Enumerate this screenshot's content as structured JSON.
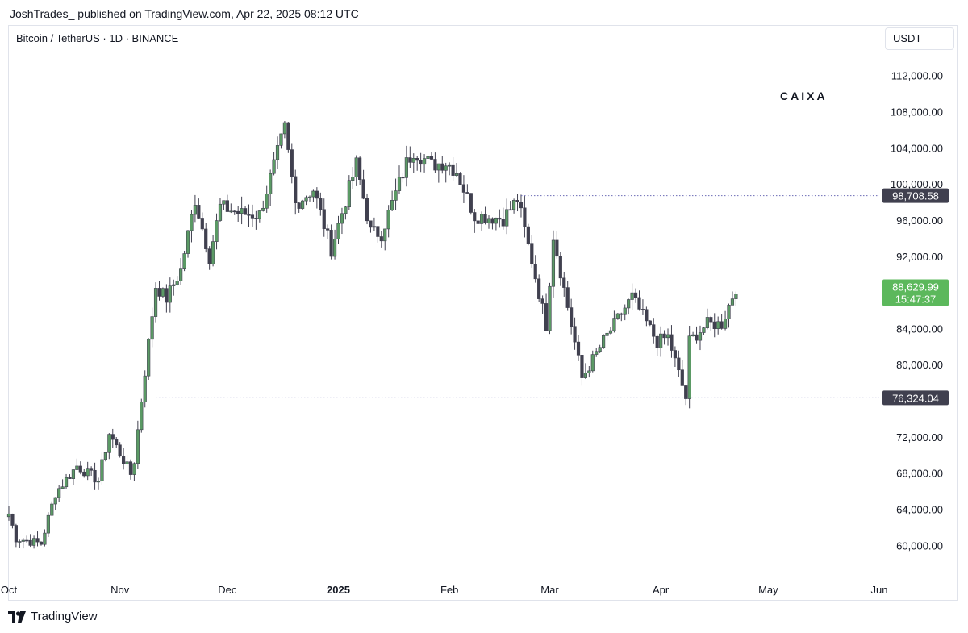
{
  "header": {
    "publisher_line": "JoshTrades_ published on TradingView.com, Apr 22, 2025 08:12 UTC"
  },
  "symbol_line": "Bitcoin / TetherUS · 1D · BINANCE",
  "currency_button": "USDT",
  "watermark": "CAIXA",
  "footer": {
    "logo_text": "TradingView"
  },
  "colors": {
    "up": "#5b9a65",
    "down": "#40404f",
    "last_price_bg": "#5cb85c",
    "level_label_bg": "#40404f",
    "dotted": "#6b6bb5"
  },
  "chart_data": {
    "type": "candlestick",
    "symbol": "BTCUSDT",
    "interval": "1D",
    "ylim": [
      57000,
      115000
    ],
    "y_ticks": [
      "112,000.00",
      "108,000.00",
      "104,000.00",
      "100,000.00",
      "96,000.00",
      "92,000.00",
      "84,000.00",
      "80,000.00",
      "72,000.00",
      "68,000.00",
      "64,000.00",
      "60,000.00"
    ],
    "y_tick_values": [
      112000,
      108000,
      104000,
      100000,
      96000,
      92000,
      84000,
      80000,
      72000,
      68000,
      64000,
      60000
    ],
    "x_labels": [
      {
        "text": "Oct",
        "date": "2024-10-01",
        "bold": false
      },
      {
        "text": "Nov",
        "date": "2024-11-01",
        "bold": false
      },
      {
        "text": "Dec",
        "date": "2024-12-01",
        "bold": false
      },
      {
        "text": "2025",
        "date": "2025-01-01",
        "bold": true
      },
      {
        "text": "Feb",
        "date": "2025-02-01",
        "bold": false
      },
      {
        "text": "Mar",
        "date": "2025-03-01",
        "bold": false
      },
      {
        "text": "Apr",
        "date": "2025-04-01",
        "bold": false
      },
      {
        "text": "May",
        "date": "2025-05-01",
        "bold": false
      },
      {
        "text": "Jun",
        "date": "2025-06-01",
        "bold": false
      }
    ],
    "date_range": [
      "2024-10-01",
      "2025-06-01"
    ],
    "levels": [
      {
        "price": 98708.58,
        "label": "98,708.58",
        "from_date": "2025-02-21"
      },
      {
        "price": 76324.04,
        "label": "76,324.04",
        "from_date": "2024-11-11"
      }
    ],
    "last_price": {
      "price": 88629.99,
      "label": "88,629.99",
      "countdown": "15:47:37"
    },
    "anchors": [
      {
        "date": "2024-10-01",
        "price": 63500
      },
      {
        "date": "2024-10-03",
        "price": 60800
      },
      {
        "date": "2024-10-10",
        "price": 60200
      },
      {
        "date": "2024-10-14",
        "price": 65800
      },
      {
        "date": "2024-10-20",
        "price": 68800
      },
      {
        "date": "2024-10-26",
        "price": 67200
      },
      {
        "date": "2024-10-29",
        "price": 72400
      },
      {
        "date": "2024-11-04",
        "price": 67900
      },
      {
        "date": "2024-11-05",
        "price": 69400
      },
      {
        "date": "2024-11-07",
        "price": 76100
      },
      {
        "date": "2024-11-11",
        "price": 88700
      },
      {
        "date": "2024-11-14",
        "price": 87300
      },
      {
        "date": "2024-11-18",
        "price": 90500
      },
      {
        "date": "2024-11-22",
        "price": 98300
      },
      {
        "date": "2024-11-26",
        "price": 91900
      },
      {
        "date": "2024-11-29",
        "price": 97500
      },
      {
        "date": "2024-12-05",
        "price": 96700
      },
      {
        "date": "2024-12-10",
        "price": 96600
      },
      {
        "date": "2024-12-17",
        "price": 106100
      },
      {
        "date": "2024-12-20",
        "price": 97800
      },
      {
        "date": "2024-12-25",
        "price": 99400
      },
      {
        "date": "2024-12-30",
        "price": 92800
      },
      {
        "date": "2025-01-06",
        "price": 102200
      },
      {
        "date": "2025-01-10",
        "price": 94700
      },
      {
        "date": "2025-01-13",
        "price": 94500
      },
      {
        "date": "2025-01-20",
        "price": 102300
      },
      {
        "date": "2025-01-22",
        "price": 103700
      },
      {
        "date": "2025-01-27",
        "price": 102100
      },
      {
        "date": "2025-01-31",
        "price": 102400
      },
      {
        "date": "2025-02-03",
        "price": 101400
      },
      {
        "date": "2025-02-08",
        "price": 96500
      },
      {
        "date": "2025-02-16",
        "price": 96200
      },
      {
        "date": "2025-02-20",
        "price": 98300
      },
      {
        "date": "2025-02-24",
        "price": 91500
      },
      {
        "date": "2025-02-28",
        "price": 84400
      },
      {
        "date": "2025-03-02",
        "price": 94300
      },
      {
        "date": "2025-03-10",
        "price": 78500
      },
      {
        "date": "2025-03-16",
        "price": 82600
      },
      {
        "date": "2025-03-24",
        "price": 87500
      },
      {
        "date": "2025-03-31",
        "price": 82500
      },
      {
        "date": "2025-04-03",
        "price": 83100
      },
      {
        "date": "2025-04-08",
        "price": 76300
      },
      {
        "date": "2025-04-09",
        "price": 82600
      },
      {
        "date": "2025-04-14",
        "price": 84500
      },
      {
        "date": "2025-04-18",
        "price": 84500
      },
      {
        "date": "2025-04-22",
        "price": 88600
      }
    ]
  }
}
